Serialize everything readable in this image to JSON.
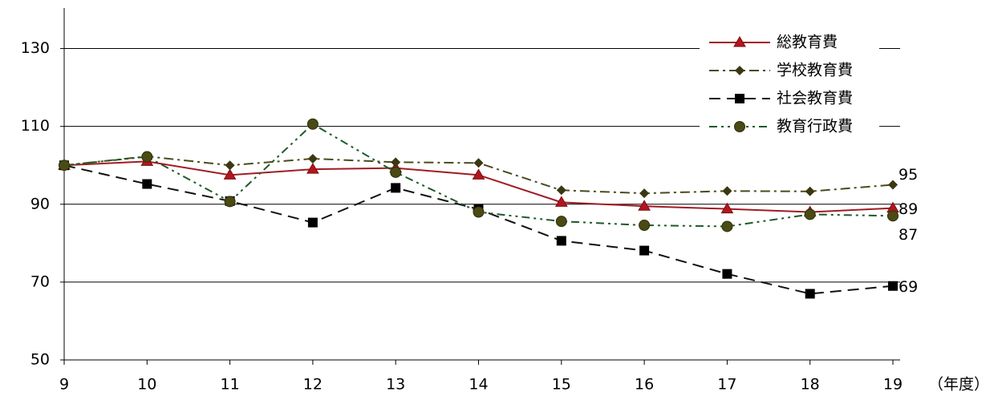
{
  "chart_data": {
    "type": "line",
    "x_label": "（年度）",
    "x": [
      9,
      10,
      11,
      12,
      13,
      14,
      15,
      16,
      17,
      18,
      19
    ],
    "xlim": [
      9,
      19
    ],
    "xticks": [
      9,
      10,
      11,
      12,
      13,
      14,
      15,
      16,
      17,
      18,
      19
    ],
    "ylim": [
      50,
      140
    ],
    "yticks": [
      50,
      70,
      90,
      110,
      130
    ],
    "grid": true,
    "legend": "upper right",
    "series": [
      {
        "name": "総教育費",
        "color": "#a01c24",
        "marker": "triangle",
        "dash": "none",
        "values": [
          100,
          101,
          97.5,
          99,
          99.3,
          97.5,
          90.5,
          89.5,
          88.8,
          88,
          89
        ]
      },
      {
        "name": "学校教育費",
        "color": "#4b4a1c",
        "marker": "diamond",
        "dash": "12,5,3,5",
        "values": [
          100,
          102.3,
          100,
          101.7,
          100.8,
          100.6,
          93.6,
          92.8,
          93.4,
          93.3,
          95
        ]
      },
      {
        "name": "社会教育費",
        "color": "#111111",
        "marker": "square",
        "dash": "14,8",
        "values": [
          100,
          95.2,
          90.8,
          85.3,
          94.2,
          88.7,
          80.6,
          78.1,
          72.1,
          67,
          69
        ]
      },
      {
        "name": "教育行政費",
        "color": "#1e5a28",
        "marker": "circle",
        "dash": "10,5,3,5,3,5",
        "values": [
          100,
          102.2,
          90.7,
          110.6,
          98.2,
          88,
          85.6,
          84.6,
          84.3,
          87.4,
          87
        ]
      }
    ]
  }
}
